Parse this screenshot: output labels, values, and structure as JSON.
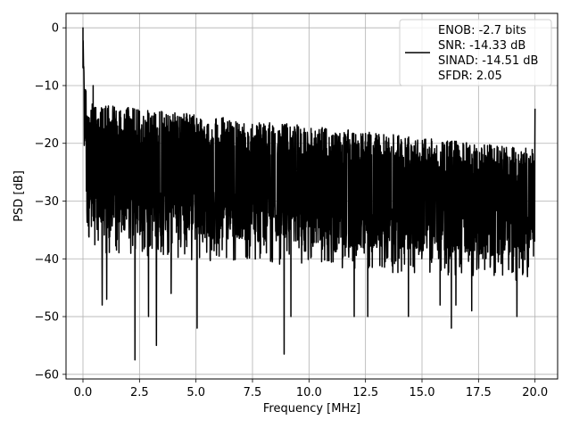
{
  "chart_data": {
    "type": "line",
    "xlabel": "Frequency [MHz]",
    "ylabel": "PSD [dB]",
    "xlim": [
      -0.75,
      21.0
    ],
    "ylim": [
      -60.8,
      2.5
    ],
    "xticks": [
      0.0,
      2.5,
      5.0,
      7.5,
      10.0,
      12.5,
      15.0,
      17.5,
      20.0
    ],
    "xtick_labels": [
      "0.0",
      "2.5",
      "5.0",
      "7.5",
      "10.0",
      "12.5",
      "15.0",
      "17.5",
      "20.0"
    ],
    "yticks": [
      0,
      -10,
      -20,
      -30,
      -40,
      -50,
      -60
    ],
    "ytick_labels": [
      "0",
      "−10",
      "−20",
      "−30",
      "−40",
      "−50",
      "−60"
    ],
    "grid": true,
    "legend_position": "top-right",
    "series": [
      {
        "color": "#000000",
        "x_range_mhz": [
          0.0,
          20.0
        ],
        "peak": [
          0.0,
          0.0
        ],
        "noise_floor_db": {
          "mean": -26,
          "upper_envelope": [
            -13,
            -21
          ],
          "lower_envelope": [
            -35,
            -40
          ]
        },
        "deep_nulls": [
          [
            0.85,
            -48
          ],
          [
            1.05,
            -47
          ],
          [
            2.3,
            -57.5
          ],
          [
            2.9,
            -50
          ],
          [
            3.25,
            -55
          ],
          [
            3.9,
            -46
          ],
          [
            5.05,
            -52
          ],
          [
            8.9,
            -56.5
          ],
          [
            9.2,
            -50
          ],
          [
            12.0,
            -50
          ],
          [
            12.6,
            -50
          ],
          [
            14.4,
            -50
          ],
          [
            15.8,
            -48
          ],
          [
            16.3,
            -52
          ],
          [
            16.5,
            -48
          ],
          [
            17.2,
            -49
          ],
          [
            19.2,
            -50
          ]
        ],
        "spikes": [
          [
            0.45,
            -10
          ],
          [
            20.0,
            -14
          ]
        ]
      }
    ],
    "legend": {
      "lines": [
        "ENOB: -2.7 bits",
        "SNR: -14.33 dB",
        "SINAD: -14.51 dB",
        "SFDR: 2.05"
      ]
    }
  }
}
